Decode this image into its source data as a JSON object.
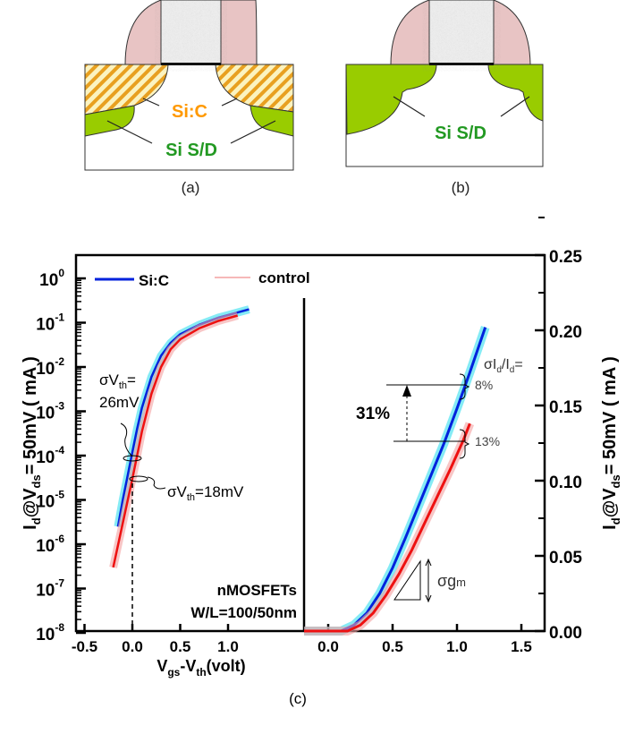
{
  "diagrams": {
    "a": {
      "caption": "(a)",
      "label_sic": "Si:C",
      "label_sd": "Si S/D"
    },
    "b": {
      "caption": "(b)",
      "label_sd": "Si S/D"
    },
    "c_caption": "(c)"
  },
  "colors": {
    "spacer": "#e8c4c4",
    "gate": "#eeeeee",
    "sd": "#99cc00",
    "sic_hatch": "#e8a020",
    "sic_text": "#ff9900",
    "sd_text": "#229922",
    "sic_line": "#0022dd",
    "sic_band": "#33ddee",
    "control_line": "#ee1111",
    "control_band": "#f4a0a0"
  },
  "chart_data": [
    {
      "type": "line",
      "yscale": "log",
      "xlabel": "V_gs-V_th(volt)",
      "ylabel": "I_d@V_ds= 50mV ( mA )",
      "xlim": [
        -0.5,
        1.5
      ],
      "ylim": [
        1e-08,
        1
      ],
      "xticks": [
        "-0.5",
        "0.0",
        "0.5",
        "1.0"
      ],
      "yticks": [
        {
          "base": "10",
          "exp": "0"
        },
        {
          "base": "10",
          "exp": "-1"
        },
        {
          "base": "10",
          "exp": "-2"
        },
        {
          "base": "10",
          "exp": "-3"
        },
        {
          "base": "10",
          "exp": "-4"
        },
        {
          "base": "10",
          "exp": "-5"
        },
        {
          "base": "10",
          "exp": "-6"
        },
        {
          "base": "10",
          "exp": "-7"
        },
        {
          "base": "10",
          "exp": "-8"
        }
      ],
      "legend": {
        "placement": "top-left",
        "entries": [
          "Si:C",
          "control"
        ]
      },
      "series": [
        {
          "name": "Si:C",
          "x": [
            -0.15,
            -0.1,
            -0.05,
            0,
            0.05,
            0.1,
            0.2,
            0.3,
            0.4,
            0.5,
            0.7,
            0.9,
            1.1,
            1.22
          ],
          "y": [
            2.5e-06,
            1e-05,
            3.5e-05,
            0.00012,
            0.0004,
            0.0012,
            0.006,
            0.018,
            0.035,
            0.055,
            0.09,
            0.13,
            0.17,
            0.2
          ]
        },
        {
          "name": "control",
          "x": [
            -0.2,
            -0.1,
            0,
            0.05,
            0.1,
            0.2,
            0.3,
            0.4,
            0.5,
            0.7,
            0.9,
            1.1
          ],
          "y": [
            3e-07,
            3e-06,
            3e-05,
            0.0001,
            0.00035,
            0.0025,
            0.01,
            0.025,
            0.042,
            0.075,
            0.11,
            0.145
          ]
        }
      ],
      "annotations": {
        "sigma_vth_sic_1": "σV",
        "sigma_vth_sic_sub": "th",
        "sigma_vth_sic_2": "=",
        "sigma_vth_sic_val": "26mV",
        "sigma_vth_ctrl": "σV",
        "sigma_vth_ctrl_sub": "th",
        "sigma_vth_ctrl_val": "=18mV",
        "device": "nMOSFETs",
        "wl": "W/L=100/50nm"
      }
    },
    {
      "type": "line",
      "yscale": "linear",
      "ylabel": "I_d@V_ds= 50mV ( mA )",
      "xlim": [
        -0.1,
        1.6
      ],
      "ylim": [
        0,
        0.25
      ],
      "xticks": [
        "0.0",
        "0.5",
        "1.0",
        "1.5"
      ],
      "yticks": [
        "0.00",
        "0.05",
        "0.10",
        "0.15",
        "0.20",
        "0.25"
      ],
      "series": [
        {
          "name": "Si:C",
          "x": [
            0.1,
            0.2,
            0.3,
            0.4,
            0.5,
            0.6,
            0.7,
            0.8,
            0.9,
            1.0,
            1.1,
            1.22
          ],
          "y": [
            0,
            0.004,
            0.012,
            0.025,
            0.042,
            0.062,
            0.083,
            0.104,
            0.125,
            0.148,
            0.172,
            0.202
          ]
        },
        {
          "name": "control",
          "x": [
            0.15,
            0.25,
            0.35,
            0.45,
            0.55,
            0.65,
            0.75,
            0.85,
            0.95,
            1.05,
            1.1
          ],
          "y": [
            0,
            0.004,
            0.012,
            0.024,
            0.038,
            0.054,
            0.072,
            0.09,
            0.108,
            0.127,
            0.138
          ]
        }
      ],
      "annotations": {
        "ratio_label": "σI",
        "ratio_sub1": "d",
        "ratio_mid": "/I",
        "ratio_sub2": "d",
        "ratio_end": "=",
        "sic_pct": "8%",
        "ctrl_pct": "13%",
        "gain": "31%",
        "sigma_gm": "σg",
        "sigma_gm_sub": "m"
      }
    }
  ]
}
